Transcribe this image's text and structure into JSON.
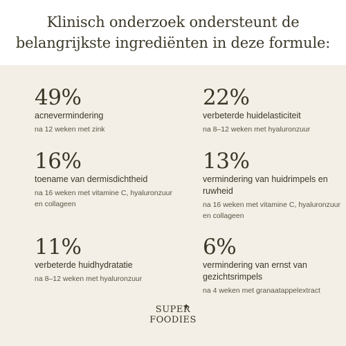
{
  "header": {
    "title": "Klinisch onderzoek ondersteunt de belangrijkste ingrediënten in deze formule:"
  },
  "stats": [
    {
      "value": "49%",
      "label": "acnevermindering",
      "note": "na 12 weken met zink"
    },
    {
      "value": "22%",
      "label": "verbeterde huidelasticiteit",
      "note": "na 8–12 weken met hyaluronzuur"
    },
    {
      "value": "16%",
      "label": "toename van dermisdichtheid",
      "note": "na 16 weken met vitamine C, hyaluronzuur en collageen"
    },
    {
      "value": "13%",
      "label": "vermindering van huidrimpels en ruwheid",
      "note": "na 16 weken met vitamine C, hyaluronzuur en collageen"
    },
    {
      "value": "11%",
      "label": "verbeterde huidhydratatie",
      "note": "na 8–12 weken met hyaluronzuur"
    },
    {
      "value": "6%",
      "label": "vermindering van ernst van gezichtsrimpels",
      "note": "na 4 weken met granaatappelextract"
    }
  ],
  "logo": {
    "line1": "SUPER",
    "line2": "FOODIES",
    "icon": "sparkle-star-icon"
  },
  "colors": {
    "header_bg": "#ffffff",
    "body_bg": "#f3efe6",
    "text": "#3a3626"
  }
}
